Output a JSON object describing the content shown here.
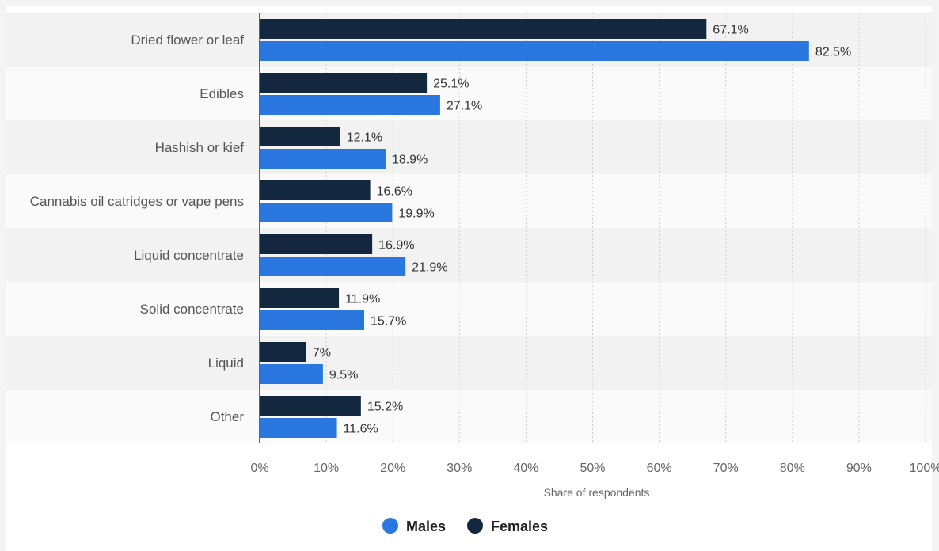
{
  "chart_data": {
    "type": "bar",
    "orientation": "horizontal",
    "categories": [
      "Dried flower or leaf",
      "Edibles",
      "Hashish or kief",
      "Cannabis oil catridges or vape pens",
      "Liquid concentrate",
      "Solid concentrate",
      "Liquid",
      "Other"
    ],
    "series": [
      {
        "name": "Females",
        "color": "#13283f",
        "values": [
          67.1,
          25.1,
          12.1,
          16.6,
          16.9,
          11.9,
          7,
          15.2
        ],
        "labels": [
          "67.1%",
          "25.1%",
          "12.1%",
          "16.6%",
          "16.9%",
          "11.9%",
          "7%",
          "15.2%"
        ]
      },
      {
        "name": "Males",
        "color": "#2a77e0",
        "values": [
          82.5,
          27.1,
          18.9,
          19.9,
          21.9,
          15.7,
          9.5,
          11.6
        ],
        "labels": [
          "82.5%",
          "27.1%",
          "18.9%",
          "19.9%",
          "21.9%",
          "15.7%",
          "9.5%",
          "11.6%"
        ]
      }
    ],
    "xlabel": "Share of respondents",
    "ylabel": "",
    "xlim": [
      0,
      100
    ],
    "xticks": [
      0,
      10,
      20,
      30,
      40,
      50,
      60,
      70,
      80,
      90,
      100
    ],
    "xtick_labels": [
      "0%",
      "10%",
      "20%",
      "30%",
      "40%",
      "50%",
      "60%",
      "70%",
      "80%",
      "90%",
      "100%"
    ],
    "grid": true,
    "legend": {
      "position": "bottom-center",
      "entries": [
        {
          "name": "Males",
          "color": "#2a77e0"
        },
        {
          "name": "Females",
          "color": "#13283f"
        }
      ]
    }
  }
}
